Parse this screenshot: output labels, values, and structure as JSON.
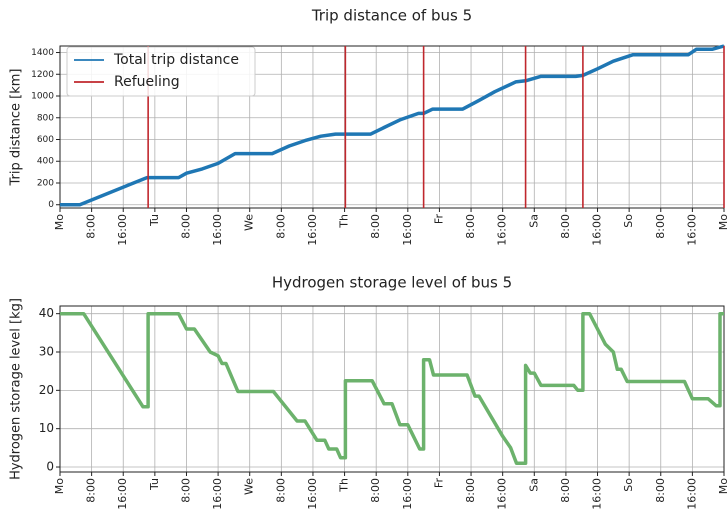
{
  "chart_data": [
    {
      "type": "line",
      "title": "Trip distance of bus 5",
      "ylabel": "Trip distance [km]",
      "xlim": [
        0,
        168
      ],
      "ylim": [
        -30,
        1460
      ],
      "yticks": [
        0,
        200,
        400,
        600,
        800,
        1000,
        1200,
        1400
      ],
      "grid": true,
      "legend": "upper left",
      "xticks": [
        {
          "value": 0,
          "label": "Mo"
        },
        {
          "value": 8,
          "label": "8:00"
        },
        {
          "value": 16,
          "label": "16:00"
        },
        {
          "value": 24,
          "label": "Tu"
        },
        {
          "value": 32,
          "label": "8:00"
        },
        {
          "value": 40,
          "label": "16:00"
        },
        {
          "value": 48,
          "label": "We"
        },
        {
          "value": 56,
          "label": "8:00"
        },
        {
          "value": 64,
          "label": "16:00"
        },
        {
          "value": 72,
          "label": "Th"
        },
        {
          "value": 80,
          "label": "8:00"
        },
        {
          "value": 88,
          "label": "16:00"
        },
        {
          "value": 96,
          "label": "Fr"
        },
        {
          "value": 104,
          "label": "8:00"
        },
        {
          "value": 112,
          "label": "16:00"
        },
        {
          "value": 120,
          "label": "Sa"
        },
        {
          "value": 128,
          "label": "8:00"
        },
        {
          "value": 136,
          "label": "16:00"
        },
        {
          "value": 144,
          "label": "So"
        },
        {
          "value": 152,
          "label": "8:00"
        },
        {
          "value": 160,
          "label": "16:00"
        },
        {
          "value": 168,
          "label": "Mo"
        }
      ],
      "series": [
        {
          "name": "Total trip distance",
          "color": "#1f77b4",
          "x": [
            0,
            5,
            22,
            30,
            32,
            36,
            40,
            44.3,
            53.7,
            58,
            62,
            66,
            69.7,
            78.6,
            82,
            86,
            90.7,
            92,
            94.3,
            101.9,
            106,
            110,
            115.3,
            117.8,
            121.6,
            130.5,
            132.3,
            136,
            140,
            145,
            159,
            161,
            165,
            168
          ],
          "values": [
            0,
            0,
            250,
            250,
            290,
            330,
            380,
            470,
            470,
            540,
            590,
            630,
            650,
            650,
            710,
            780,
            840,
            840,
            880,
            880,
            960,
            1040,
            1130,
            1140,
            1180,
            1180,
            1190,
            1250,
            1320,
            1380,
            1380,
            1430,
            1430,
            1460
          ]
        },
        {
          "name": "Refueling",
          "color": "#c0272d",
          "type": "vline",
          "x": [
            22.3,
            72.2,
            92,
            117.8,
            132.3,
            168
          ]
        }
      ]
    },
    {
      "type": "line",
      "title": "Hydrogen storage level of bus 5",
      "ylabel": "Hydrogen storage level [kg]",
      "xlim": [
        0,
        168
      ],
      "ylim": [
        -1.3,
        42
      ],
      "yticks": [
        0,
        10,
        20,
        30,
        40
      ],
      "grid": true,
      "color": "#6cb26c",
      "xticks": [
        {
          "value": 0,
          "label": "Mo"
        },
        {
          "value": 8,
          "label": "8:00"
        },
        {
          "value": 16,
          "label": "16:00"
        },
        {
          "value": 24,
          "label": "Tu"
        },
        {
          "value": 32,
          "label": "8:00"
        },
        {
          "value": 40,
          "label": "16:00"
        },
        {
          "value": 48,
          "label": "We"
        },
        {
          "value": 56,
          "label": "8:00"
        },
        {
          "value": 64,
          "label": "16:00"
        },
        {
          "value": 72,
          "label": "Th"
        },
        {
          "value": 80,
          "label": "8:00"
        },
        {
          "value": 88,
          "label": "16:00"
        },
        {
          "value": 96,
          "label": "Fr"
        },
        {
          "value": 104,
          "label": "8:00"
        },
        {
          "value": 112,
          "label": "16:00"
        },
        {
          "value": 120,
          "label": "Sa"
        },
        {
          "value": 128,
          "label": "8:00"
        },
        {
          "value": 136,
          "label": "16:00"
        },
        {
          "value": 144,
          "label": "So"
        },
        {
          "value": 152,
          "label": "8:00"
        },
        {
          "value": 160,
          "label": "16:00"
        },
        {
          "value": 168,
          "label": "Mo"
        }
      ],
      "x": [
        0,
        6,
        21,
        22.3,
        22.3,
        30,
        32,
        34,
        38,
        40,
        41,
        42,
        45,
        54,
        60,
        62,
        65,
        67,
        68,
        70,
        71,
        72.2,
        72.2,
        79,
        82,
        84,
        86,
        88,
        91,
        92,
        92,
        93.5,
        94.5,
        103,
        105,
        106,
        112,
        114,
        115.5,
        117.8,
        117.8,
        119,
        120,
        121.7,
        130,
        131,
        132.3,
        132.3,
        134,
        136,
        138,
        140,
        141,
        142,
        143.5,
        158,
        160,
        164,
        166,
        167,
        167,
        168
      ],
      "values": [
        40,
        40,
        15.7,
        15.7,
        40,
        40,
        36,
        36,
        30,
        29,
        27,
        27,
        19.7,
        19.7,
        12,
        12,
        7,
        7,
        4.7,
        4.7,
        2.4,
        2.4,
        22.5,
        22.5,
        16.5,
        16.5,
        11,
        11,
        4.7,
        4.7,
        28,
        28,
        24,
        24,
        18.5,
        18.5,
        8,
        5,
        1,
        1,
        26.5,
        24.5,
        24.5,
        21.3,
        21.3,
        20,
        20,
        40,
        40,
        36,
        32,
        30,
        25.5,
        25.5,
        22.3,
        22.3,
        17.8,
        17.8,
        16,
        16,
        40,
        40
      ]
    }
  ]
}
